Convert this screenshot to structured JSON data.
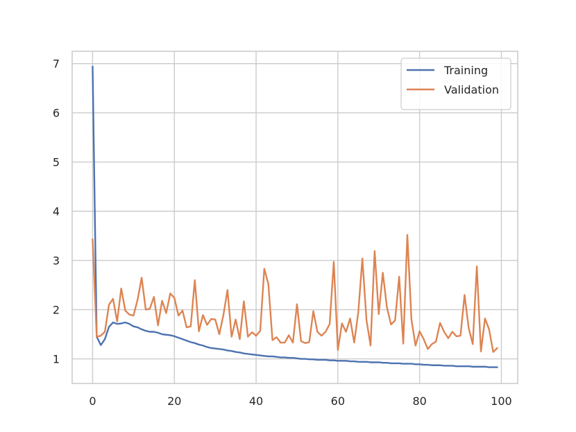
{
  "chart_data": {
    "type": "line",
    "title": "",
    "xlabel": "",
    "ylabel": "",
    "xlim": [
      -5,
      104
    ],
    "ylim": [
      0.5,
      7.25
    ],
    "x_ticks": [
      0,
      20,
      40,
      60,
      80,
      100
    ],
    "y_ticks": [
      1,
      2,
      3,
      4,
      5,
      6,
      7
    ],
    "grid": true,
    "legend_position": "top-right",
    "x": [
      0,
      1,
      2,
      3,
      4,
      5,
      6,
      7,
      8,
      9,
      10,
      11,
      12,
      13,
      14,
      15,
      16,
      17,
      18,
      19,
      20,
      21,
      22,
      23,
      24,
      25,
      26,
      27,
      28,
      29,
      30,
      31,
      32,
      33,
      34,
      35,
      36,
      37,
      38,
      39,
      40,
      41,
      42,
      43,
      44,
      45,
      46,
      47,
      48,
      49,
      50,
      51,
      52,
      53,
      54,
      55,
      56,
      57,
      58,
      59,
      60,
      61,
      62,
      63,
      64,
      65,
      66,
      67,
      68,
      69,
      70,
      71,
      72,
      73,
      74,
      75,
      76,
      77,
      78,
      79,
      80,
      81,
      82,
      83,
      84,
      85,
      86,
      87,
      88,
      89,
      90,
      91,
      92,
      93,
      94,
      95,
      96,
      97,
      98,
      99
    ],
    "series": [
      {
        "name": "Training",
        "color": "#4c72b0",
        "values": [
          6.94,
          1.45,
          1.28,
          1.4,
          1.65,
          1.74,
          1.71,
          1.72,
          1.74,
          1.71,
          1.66,
          1.64,
          1.6,
          1.57,
          1.55,
          1.55,
          1.53,
          1.5,
          1.49,
          1.48,
          1.46,
          1.43,
          1.4,
          1.37,
          1.34,
          1.32,
          1.29,
          1.27,
          1.24,
          1.22,
          1.21,
          1.2,
          1.19,
          1.17,
          1.16,
          1.14,
          1.13,
          1.11,
          1.1,
          1.09,
          1.08,
          1.07,
          1.06,
          1.05,
          1.05,
          1.04,
          1.03,
          1.03,
          1.02,
          1.02,
          1.01,
          1.0,
          1.0,
          0.99,
          0.99,
          0.98,
          0.98,
          0.98,
          0.97,
          0.97,
          0.96,
          0.96,
          0.96,
          0.95,
          0.95,
          0.94,
          0.94,
          0.94,
          0.93,
          0.93,
          0.93,
          0.92,
          0.92,
          0.91,
          0.91,
          0.91,
          0.9,
          0.9,
          0.9,
          0.89,
          0.89,
          0.88,
          0.88,
          0.87,
          0.87,
          0.87,
          0.86,
          0.86,
          0.86,
          0.85,
          0.85,
          0.85,
          0.85,
          0.84,
          0.84,
          0.84,
          0.84,
          0.83,
          0.83,
          0.83
        ]
      },
      {
        "name": "Validation",
        "color": "#dd8452",
        "values": [
          3.43,
          1.45,
          1.47,
          1.55,
          2.1,
          2.22,
          1.76,
          2.43,
          1.98,
          1.9,
          1.88,
          2.2,
          2.65,
          2.0,
          2.02,
          2.26,
          1.68,
          2.18,
          1.93,
          2.33,
          2.24,
          1.88,
          1.98,
          1.64,
          1.66,
          2.6,
          1.56,
          1.89,
          1.69,
          1.81,
          1.8,
          1.5,
          1.89,
          2.4,
          1.45,
          1.8,
          1.4,
          2.17,
          1.45,
          1.54,
          1.47,
          1.57,
          2.83,
          2.52,
          1.38,
          1.44,
          1.33,
          1.33,
          1.48,
          1.33,
          2.11,
          1.36,
          1.32,
          1.34,
          1.97,
          1.55,
          1.47,
          1.55,
          1.71,
          2.97,
          1.18,
          1.72,
          1.55,
          1.82,
          1.33,
          1.95,
          3.04,
          1.79,
          1.27,
          3.19,
          1.91,
          2.75,
          2.05,
          1.7,
          1.78,
          2.67,
          1.31,
          3.52,
          1.8,
          1.27,
          1.56,
          1.4,
          1.2,
          1.3,
          1.35,
          1.73,
          1.55,
          1.42,
          1.55,
          1.46,
          1.47,
          2.3,
          1.63,
          1.3,
          2.88,
          1.15,
          1.82,
          1.6,
          1.14,
          1.22
        ]
      }
    ]
  }
}
